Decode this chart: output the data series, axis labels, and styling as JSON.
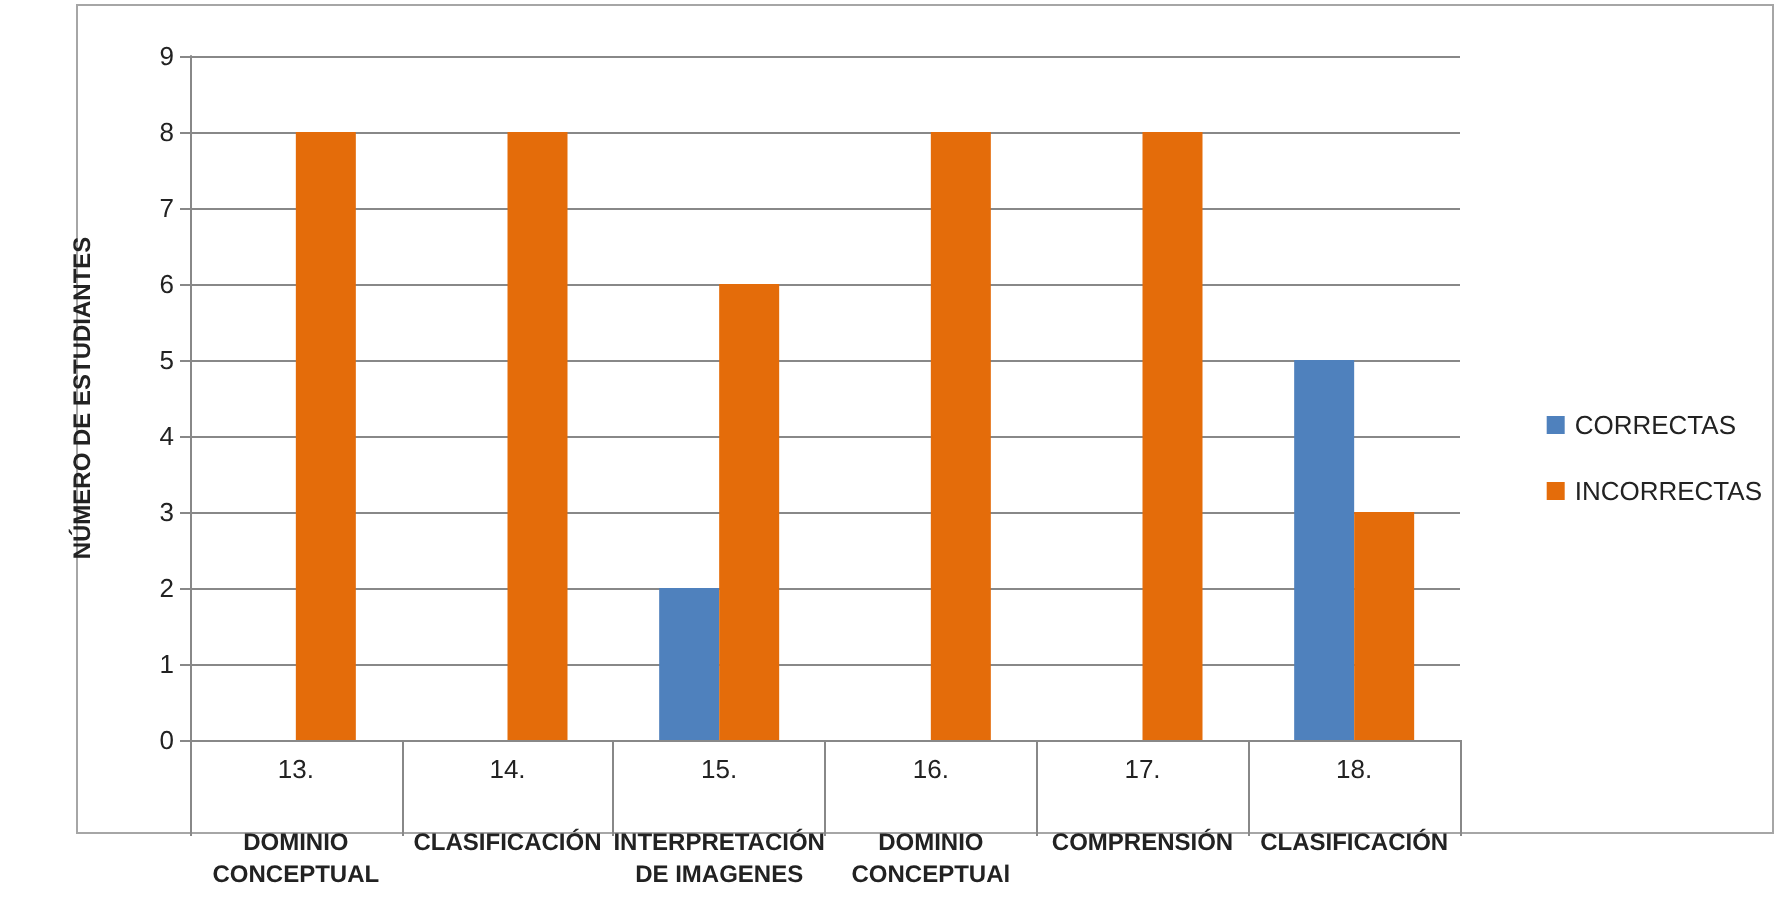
{
  "chart_data": {
    "type": "bar",
    "ylabel": "NÚMERO DE ESTUDIANTES",
    "categories": [
      "13.\nDOMINIO\nCONCEPTUAL",
      "14.\nCLASIFICACIÓN",
      "15.\nINTERPRETACIÓN\nDE IMAGENES",
      "16.\nDOMINIO\nCONCEPTUAl",
      "17.\nCOMPRENSIÓN",
      "18.\nCLASIFICACIÓN"
    ],
    "series": [
      {
        "name": "CORRECTAS",
        "color": "#4f81bd",
        "values": [
          0,
          0,
          2,
          0,
          0,
          5
        ]
      },
      {
        "name": "INCORRECTAS",
        "color": "#e46c0a",
        "values": [
          8,
          8,
          6,
          8,
          8,
          3
        ]
      }
    ],
    "ylim": [
      0,
      9
    ],
    "yticks": [
      0,
      1,
      2,
      3,
      4,
      5,
      6,
      7,
      8,
      9
    ],
    "grid": "y",
    "legend": "right"
  }
}
